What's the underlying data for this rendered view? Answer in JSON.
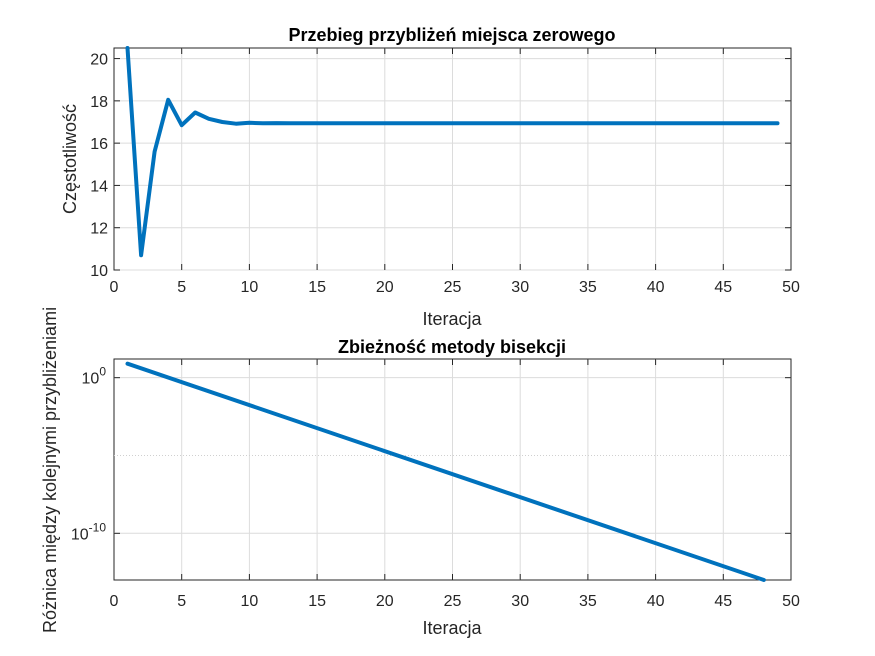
{
  "chart_data": [
    {
      "type": "line",
      "title": "Przebieg przybliżeń miejsca zerowego",
      "xlabel": "Iteracja",
      "ylabel": "Częstotliwość",
      "xlim": [
        0,
        50
      ],
      "ylim": [
        10,
        20.5
      ],
      "xticks": [
        "0",
        "5",
        "10",
        "15",
        "20",
        "25",
        "30",
        "35",
        "40",
        "45",
        "50"
      ],
      "yticks": [
        "10",
        "12",
        "14",
        "16",
        "18",
        "20"
      ],
      "grid": true,
      "series": [
        {
          "x": [
            1,
            2,
            3,
            4,
            5,
            6,
            7,
            8,
            9,
            10,
            11,
            12,
            13,
            14,
            15,
            16,
            17,
            18,
            19,
            20,
            21,
            22,
            23,
            24,
            25,
            26,
            27,
            28,
            29,
            30,
            31,
            32,
            33,
            34,
            35,
            36,
            37,
            38,
            39,
            40,
            41,
            42,
            43,
            44,
            45,
            46,
            47,
            48,
            49
          ],
          "y": [
            20.5,
            10.7,
            15.6,
            18.05,
            16.85,
            17.45,
            17.15,
            17.0,
            16.92,
            16.96,
            16.94,
            16.95,
            16.945,
            16.94,
            16.94,
            16.94,
            16.94,
            16.94,
            16.94,
            16.94,
            16.94,
            16.94,
            16.94,
            16.94,
            16.94,
            16.94,
            16.94,
            16.94,
            16.94,
            16.94,
            16.94,
            16.94,
            16.94,
            16.94,
            16.94,
            16.94,
            16.94,
            16.94,
            16.94,
            16.94,
            16.94,
            16.94,
            16.94,
            16.94,
            16.94,
            16.94,
            16.94,
            16.94,
            16.94
          ]
        }
      ]
    },
    {
      "type": "line",
      "title": "Zbieżność metody bisekcji",
      "xlabel": "Iteracja",
      "ylabel": "Różnica między kolejnymi przybliżeniami",
      "xlim": [
        0,
        50
      ],
      "yscale": "log",
      "ylim_log10": [
        -13,
        1.2
      ],
      "xticks": [
        "0",
        "5",
        "10",
        "15",
        "20",
        "25",
        "30",
        "35",
        "40",
        "45",
        "50"
      ],
      "yticks": [
        {
          "base": "10",
          "exp": "0"
        },
        {
          "base": "10",
          "exp": "-10"
        }
      ],
      "grid": true,
      "series": [
        {
          "x": [
            1,
            48
          ],
          "y_log10": [
            0.9,
            -13.0
          ]
        }
      ]
    }
  ],
  "colors": {
    "series": "#0072bd",
    "axes": "#262626",
    "grid": "#dcdcdc"
  }
}
